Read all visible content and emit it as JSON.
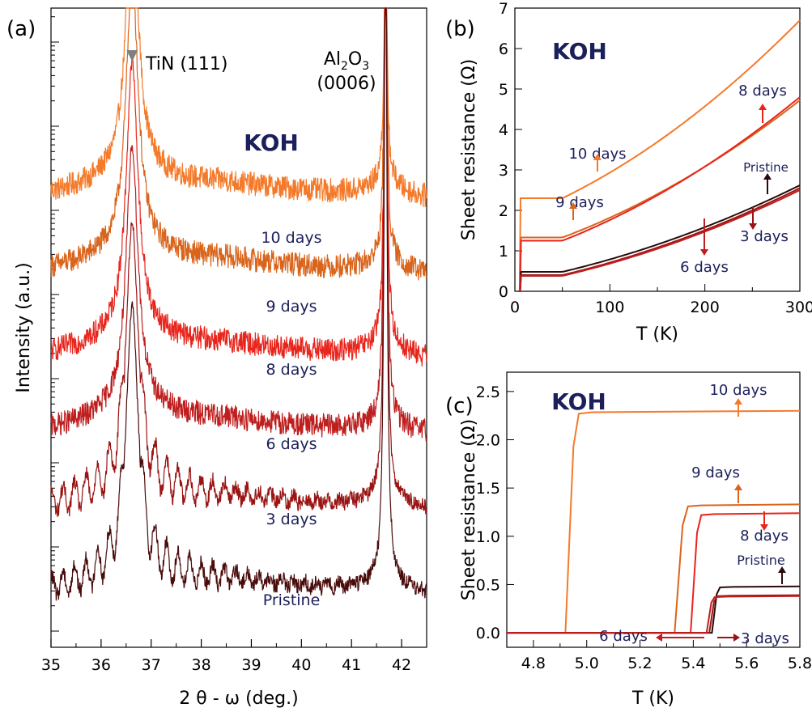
{
  "chart_data": [
    {
      "panel": "(a)",
      "type": "line",
      "xlabel": "2 θ - ω (deg.)",
      "ylabel": "Intensity (a.u.)",
      "xlim": [
        35,
        42.5
      ],
      "x_ticks": [
        "35",
        "36",
        "37",
        "38",
        "39",
        "40",
        "41",
        "42"
      ],
      "y_scale": "log",
      "y_tick_labels": "none",
      "annotations": {
        "peak1": "TiN (111)",
        "peak2_main": "Al",
        "peak2_sub1": "2",
        "peak2_mid": "O",
        "peak2_sub2": "3",
        "peak2_line2": "(0006)",
        "etchant": "KOH"
      },
      "series": [
        {
          "name": "10 days",
          "color": "#f47a2a",
          "baseline": 5.3,
          "peak_height": 3.2,
          "fringes": false
        },
        {
          "name": "9 days",
          "color": "#d9651c",
          "baseline": 4.4,
          "peak_height": 3.2,
          "fringes": false
        },
        {
          "name": "8 days",
          "color": "#e8251c",
          "baseline": 3.4,
          "peak_height": 3.1,
          "fringes": false
        },
        {
          "name": "6 days",
          "color": "#bf1e1e",
          "baseline": 2.5,
          "peak_height": 3.0,
          "fringes": false
        },
        {
          "name": "3 days",
          "color": "#9a1414",
          "baseline": 1.6,
          "peak_height": 3.0,
          "fringes": true
        },
        {
          "name": "Pristine",
          "color": "#4a0b0b",
          "baseline": 0.6,
          "peak_height": 3.0,
          "fringes": true
        }
      ],
      "peaks_deg": [
        36.62,
        41.68
      ]
    },
    {
      "panel": "(b)",
      "type": "line",
      "xlabel": "T (K)",
      "ylabel": "Sheet resistance (Ω)",
      "xlim": [
        0,
        300
      ],
      "ylim": [
        0,
        7
      ],
      "x_ticks": [
        "0",
        "100",
        "200",
        "300"
      ],
      "y_ticks": [
        "0",
        "1",
        "2",
        "3",
        "4",
        "5",
        "6",
        "7"
      ],
      "etchant": "KOH",
      "series": [
        {
          "name": "10 days",
          "color": "#f47a2a",
          "Tc": 5.0,
          "R_res": 2.3,
          "R_300": 6.7
        },
        {
          "name": "9 days",
          "color": "#d9651c",
          "Tc": 5.4,
          "R_res": 1.33,
          "R_300": 4.72
        },
        {
          "name": "8 days",
          "color": "#e8251c",
          "Tc": 5.4,
          "R_res": 1.25,
          "R_300": 4.8
        },
        {
          "name": "Pristine",
          "color": "#2b0a0a",
          "Tc": 5.5,
          "R_res": 0.48,
          "R_300": 2.62
        },
        {
          "name": "3 days",
          "color": "#9a1414",
          "Tc": 5.5,
          "R_res": 0.4,
          "R_300": 2.55
        },
        {
          "name": "6 days",
          "color": "#bf1e1e",
          "Tc": 5.5,
          "R_res": 0.38,
          "R_300": 2.5
        }
      ]
    },
    {
      "panel": "(c)",
      "type": "line",
      "xlabel": "T (K)",
      "ylabel": "Sheet resistance (Ω)",
      "xlim": [
        4.7,
        5.8
      ],
      "ylim": [
        -0.15,
        2.7
      ],
      "x_ticks": [
        "4.8",
        "5.0",
        "5.2",
        "5.4",
        "5.6",
        "5.8"
      ],
      "y_ticks": [
        "0.0",
        "0.5",
        "1.0",
        "1.5",
        "2.0",
        "2.5"
      ],
      "etchant": "KOH",
      "series": [
        {
          "name": "10 days",
          "color": "#f47a2a",
          "T_onset": 4.92,
          "T_top": 4.97,
          "R_top": 2.27,
          "R_end": 2.3
        },
        {
          "name": "9 days",
          "color": "#d9651c",
          "T_onset": 5.33,
          "T_top": 5.38,
          "R_top": 1.31,
          "R_end": 1.33
        },
        {
          "name": "8 days",
          "color": "#e8251c",
          "T_onset": 5.39,
          "T_top": 5.43,
          "R_top": 1.22,
          "R_end": 1.24
        },
        {
          "name": "Pristine",
          "color": "#2b0a0a",
          "T_onset": 5.47,
          "T_top": 5.5,
          "R_top": 0.47,
          "R_end": 0.48
        },
        {
          "name": "3 days",
          "color": "#9a1414",
          "T_onset": 5.46,
          "T_top": 5.49,
          "R_top": 0.38,
          "R_end": 0.39
        },
        {
          "name": "6 days",
          "color": "#bf1e1e",
          "T_onset": 5.45,
          "T_top": 5.48,
          "R_top": 0.37,
          "R_end": 0.38
        }
      ]
    }
  ],
  "panel_labels": [
    "(a)",
    "(b)",
    "(c)"
  ]
}
